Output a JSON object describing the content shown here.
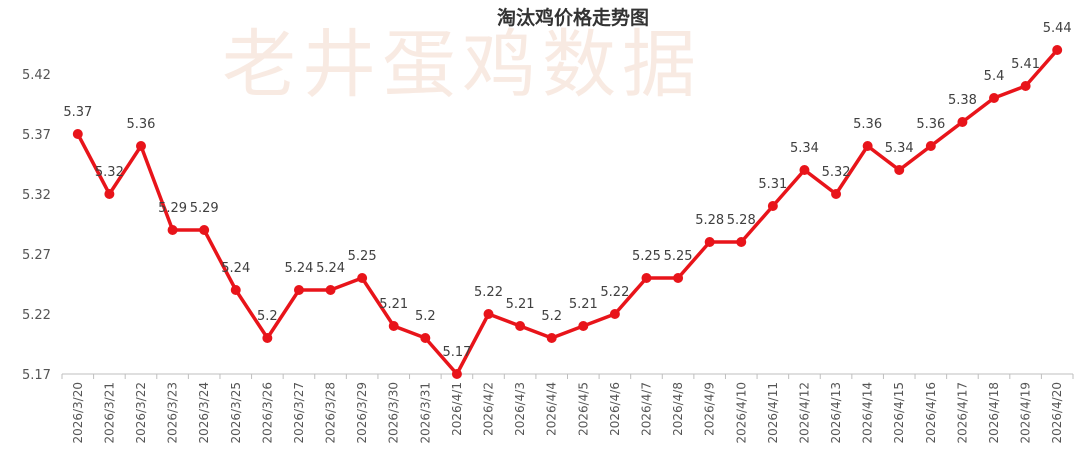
{
  "watermark_text": "老井蛋鸡数据",
  "chart_data": {
    "type": "line",
    "title": "淘汰鸡价格走势图",
    "xlabel": "",
    "ylabel": "",
    "ylim": [
      5.17,
      5.465
    ],
    "yticks": [
      "5.17",
      "5.22",
      "5.27",
      "5.32",
      "5.37",
      "5.42"
    ],
    "grid": false,
    "legend": "none",
    "line_color": "#e8141a",
    "categories": [
      "2026/3/20",
      "2026/3/21",
      "2026/3/22",
      "2026/3/23",
      "2026/3/24",
      "2026/3/25",
      "2026/3/26",
      "2026/3/27",
      "2026/3/28",
      "2026/3/29",
      "2026/3/30",
      "2026/3/31",
      "2026/4/1",
      "2026/4/2",
      "2026/4/3",
      "2026/4/4",
      "2026/4/5",
      "2026/4/6",
      "2026/4/7",
      "2026/4/8",
      "2026/4/9",
      "2026/4/10",
      "2026/4/11",
      "2026/4/12",
      "2026/4/13",
      "2026/4/14",
      "2026/4/15",
      "2026/4/16",
      "2026/4/17",
      "2026/4/18",
      "2026/4/19",
      "2026/4/20"
    ],
    "values": [
      5.37,
      5.32,
      5.36,
      5.29,
      5.29,
      5.24,
      5.2,
      5.24,
      5.24,
      5.25,
      5.21,
      5.2,
      5.17,
      5.22,
      5.21,
      5.2,
      5.21,
      5.22,
      5.25,
      5.25,
      5.28,
      5.28,
      5.31,
      5.34,
      5.32,
      5.36,
      5.34,
      5.36,
      5.38,
      5.4,
      5.41,
      5.44
    ],
    "data_labels": [
      "5.37",
      "5.32",
      "5.36",
      "5.29",
      "5.29",
      "5.24",
      "5.2",
      "5.24",
      "5.24",
      "5.25",
      "5.21",
      "5.2",
      "5.17",
      "5.22",
      "5.21",
      "5.2",
      "5.21",
      "5.22",
      "5.25",
      "5.25",
      "5.28",
      "5.28",
      "5.31",
      "5.34",
      "5.32",
      "5.36",
      "5.34",
      "5.36",
      "5.38",
      "5.4",
      "5.41",
      "5.44"
    ]
  }
}
